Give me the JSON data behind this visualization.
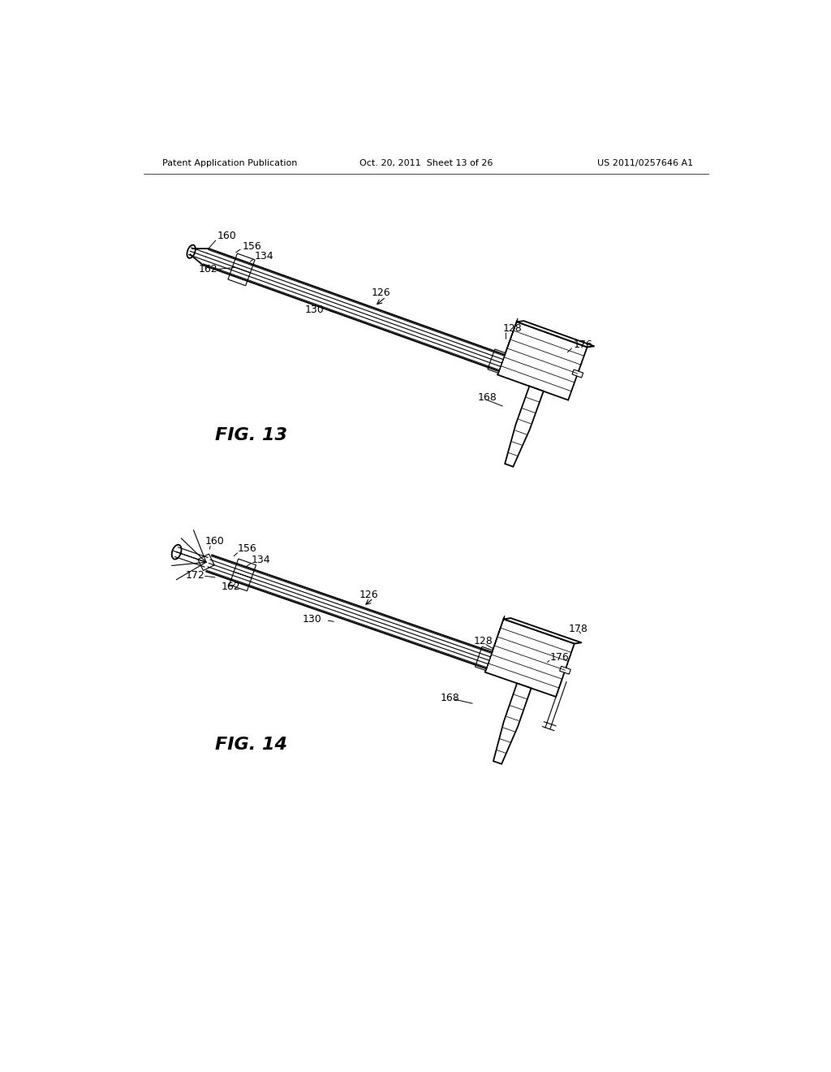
{
  "bg_color": "#ffffff",
  "header_left": "Patent Application Publication",
  "header_mid": "Oct. 20, 2011  Sheet 13 of 26",
  "header_right": "US 2011/0257646 A1",
  "fig13_label": "FIG. 13",
  "fig14_label": "FIG. 14",
  "line_color": "#000000"
}
